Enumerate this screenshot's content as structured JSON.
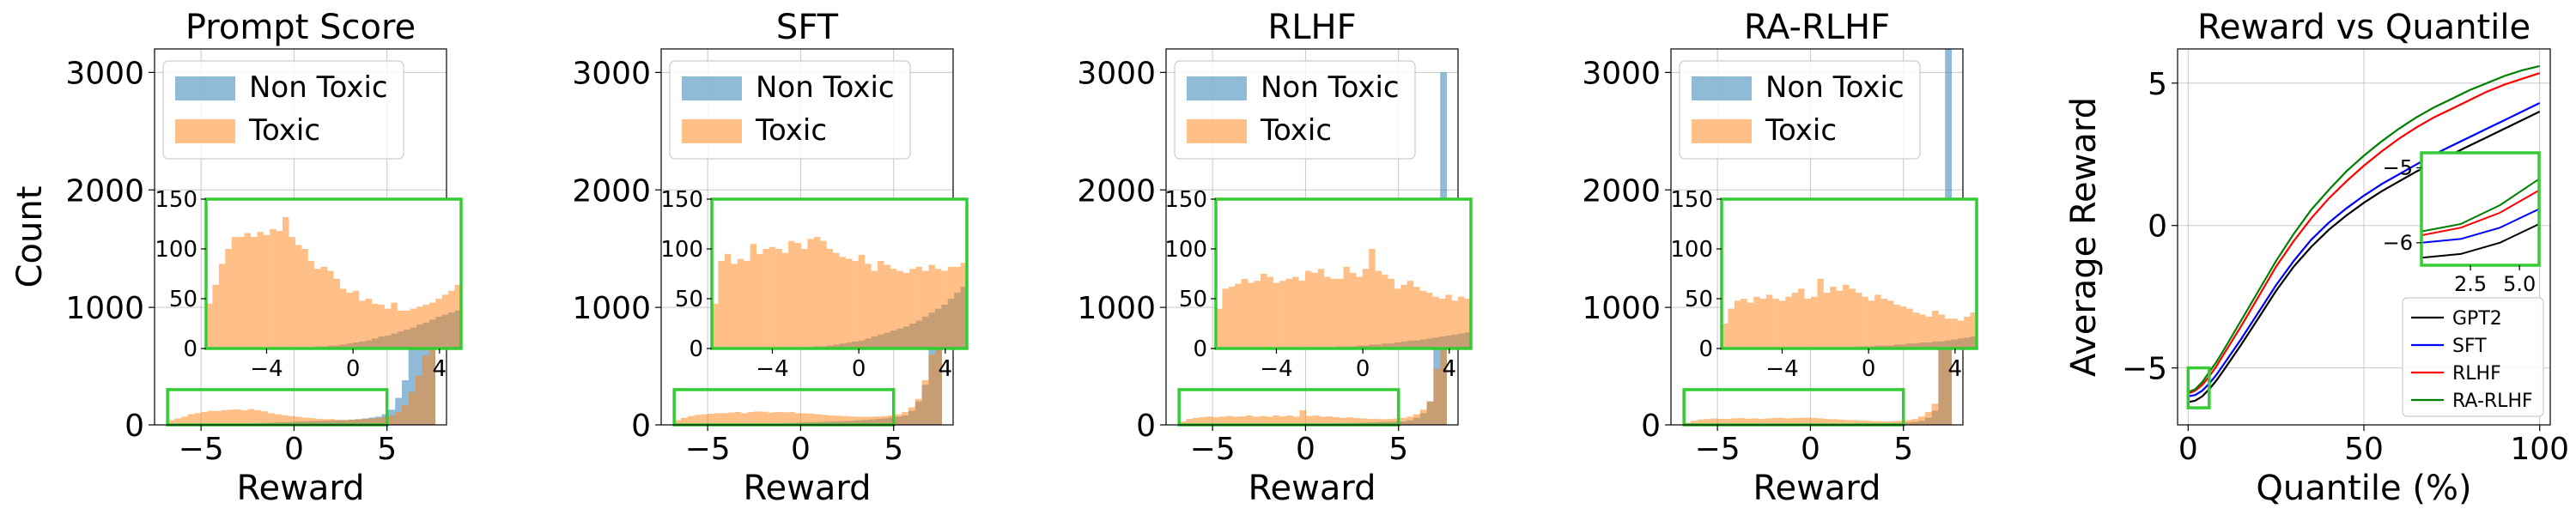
{
  "colors": {
    "non_toxic": "#1f77b4",
    "toxic": "#ff7f0e",
    "inset_border": "#33cc33",
    "grid": "#b0b0b0",
    "gpt2": "#000000",
    "sft": "#0000ff",
    "rlhf": "#ff0000",
    "ra_rlhf": "#008000"
  },
  "chart_data": [
    {
      "type": "histogram",
      "title": "Prompt Score",
      "xlabel": "Reward",
      "ylabel": "Count",
      "xlim": [
        -7.5,
        8.2
      ],
      "ylim": [
        0,
        3200
      ],
      "xticks": [
        -5,
        0,
        5
      ],
      "xtick_labels": [
        "−5",
        "0",
        "5"
      ],
      "yticks": [
        0,
        1000,
        2000,
        3000
      ],
      "ytick_labels": [
        "0",
        "1000",
        "2000",
        "3000"
      ],
      "grid": true,
      "legend": {
        "placement": "upper-left",
        "entries": [
          "Non Toxic",
          "Toxic"
        ]
      },
      "bin_range": [
        -6.8,
        7.6
      ],
      "nontoxic_counts": [
        0,
        1,
        1,
        1,
        2,
        2,
        3,
        3,
        5,
        6,
        8,
        10,
        12,
        14,
        16,
        18,
        20,
        22,
        25,
        28,
        30,
        32,
        34,
        35,
        36,
        38,
        40,
        44,
        48,
        55,
        62,
        70,
        90,
        130,
        230,
        380,
        650,
        1000,
        1200,
        1420
      ],
      "toxic_counts": [
        40,
        55,
        70,
        90,
        100,
        110,
        120,
        118,
        125,
        130,
        132,
        125,
        135,
        125,
        115,
        100,
        90,
        82,
        75,
        70,
        62,
        58,
        52,
        48,
        50,
        44,
        42,
        45,
        48,
        50,
        55,
        58,
        70,
        80,
        110,
        170,
        280,
        420,
        590,
        830
      ],
      "zoom_box": {
        "xlim": [
          -6.8,
          5
        ],
        "ylim": [
          0,
          300
        ]
      },
      "inset": {
        "xlim": [
          -6.8,
          5
        ],
        "ylim": [
          0,
          150
        ],
        "xticks": [
          -4,
          0,
          4
        ],
        "xtick_labels": [
          "−4",
          "0",
          "4"
        ],
        "yticks": [
          0,
          50,
          100,
          150
        ],
        "ytick_labels": [
          "0",
          "50",
          "100",
          "150"
        ],
        "nontoxic_counts": [
          0,
          0,
          0,
          0,
          0,
          0,
          0,
          0,
          0,
          0,
          0,
          0,
          0,
          1,
          1,
          1,
          1,
          2,
          2,
          3,
          3,
          4,
          5,
          6,
          7,
          8,
          10,
          12,
          13,
          15,
          17,
          19,
          21,
          24,
          26,
          29,
          32,
          34,
          36,
          38
        ],
        "toxic_counts": [
          45,
          64,
          85,
          100,
          112,
          112,
          116,
          112,
          117,
          114,
          120,
          118,
          132,
          112,
          104,
          100,
          88,
          80,
          82,
          78,
          70,
          60,
          56,
          58,
          48,
          50,
          45,
          44,
          40,
          46,
          38,
          38,
          40,
          42,
          44,
          46,
          50,
          54,
          58,
          64
        ]
      }
    },
    {
      "type": "histogram",
      "title": "SFT",
      "xlabel": "Reward",
      "ylabel": "",
      "xlim": [
        -7.5,
        8.2
      ],
      "ylim": [
        0,
        3200
      ],
      "xticks": [
        -5,
        0,
        5
      ],
      "xtick_labels": [
        "−5",
        "0",
        "5"
      ],
      "yticks": [
        0,
        1000,
        2000,
        3000
      ],
      "ytick_labels": [
        "0",
        "1000",
        "2000",
        "3000"
      ],
      "grid": true,
      "legend": {
        "placement": "upper-left",
        "entries": [
          "Non Toxic",
          "Toxic"
        ]
      },
      "bin_range": [
        -6.8,
        7.6
      ],
      "nontoxic_counts": [
        0,
        0,
        1,
        1,
        1,
        2,
        2,
        3,
        3,
        4,
        5,
        6,
        7,
        8,
        10,
        12,
        14,
        16,
        18,
        20,
        22,
        24,
        26,
        28,
        30,
        32,
        34,
        38,
        42,
        46,
        50,
        56,
        62,
        70,
        80,
        120,
        200,
        340,
        700,
        1900
      ],
      "toxic_counts": [
        40,
        60,
        75,
        85,
        90,
        95,
        100,
        100,
        105,
        110,
        100,
        110,
        115,
        112,
        105,
        110,
        108,
        110,
        100,
        98,
        95,
        90,
        85,
        80,
        78,
        75,
        72,
        70,
        68,
        70,
        72,
        75,
        80,
        90,
        110,
        150,
        220,
        380,
        600,
        800
      ],
      "zoom_box": {
        "xlim": [
          -6.8,
          5
        ],
        "ylim": [
          0,
          300
        ]
      },
      "inset": {
        "xlim": [
          -6.8,
          5
        ],
        "ylim": [
          0,
          150
        ],
        "xticks": [
          -4,
          0,
          4
        ],
        "xtick_labels": [
          "−4",
          "0",
          "4"
        ],
        "yticks": [
          0,
          50,
          100,
          150
        ],
        "ytick_labels": [
          "0",
          "50",
          "100",
          "150"
        ],
        "nontoxic_counts": [
          0,
          0,
          0,
          0,
          0,
          0,
          0,
          0,
          0,
          0,
          0,
          0,
          0,
          1,
          1,
          1,
          2,
          2,
          3,
          4,
          5,
          6,
          7,
          8,
          10,
          12,
          14,
          16,
          18,
          20,
          22,
          25,
          28,
          32,
          36,
          40,
          44,
          50,
          56,
          62
        ],
        "toxic_counts": [
          45,
          88,
          95,
          85,
          90,
          88,
          105,
          95,
          100,
          102,
          100,
          96,
          108,
          106,
          100,
          110,
          112,
          108,
          100,
          96,
          92,
          90,
          88,
          94,
          85,
          78,
          88,
          84,
          80,
          78,
          76,
          80,
          82,
          78,
          84,
          80,
          78,
          82,
          82,
          86
        ]
      }
    },
    {
      "type": "histogram",
      "title": "RLHF",
      "xlabel": "Reward",
      "ylabel": "",
      "xlim": [
        -7.5,
        8.2
      ],
      "ylim": [
        0,
        3200
      ],
      "xticks": [
        -5,
        0,
        5
      ],
      "xtick_labels": [
        "−5",
        "0",
        "5"
      ],
      "yticks": [
        0,
        1000,
        2000,
        3000
      ],
      "ytick_labels": [
        "0",
        "1000",
        "2000",
        "3000"
      ],
      "grid": true,
      "legend": {
        "placement": "upper-left",
        "entries": [
          "Non Toxic",
          "Toxic"
        ]
      },
      "bin_range": [
        -6.8,
        7.6
      ],
      "nontoxic_counts": [
        0,
        0,
        0,
        1,
        1,
        1,
        1,
        2,
        2,
        2,
        3,
        3,
        4,
        4,
        5,
        6,
        6,
        7,
        8,
        9,
        10,
        11,
        12,
        13,
        14,
        15,
        16,
        18,
        20,
        22,
        24,
        26,
        28,
        30,
        40,
        60,
        100,
        200,
        700,
        3000
      ],
      "toxic_counts": [
        30,
        50,
        60,
        65,
        70,
        65,
        70,
        75,
        70,
        72,
        80,
        70,
        75,
        70,
        80,
        72,
        80,
        70,
        125,
        75,
        80,
        70,
        72,
        65,
        60,
        65,
        58,
        55,
        50,
        52,
        48,
        50,
        55,
        60,
        70,
        90,
        130,
        200,
        480,
        1750
      ],
      "zoom_box": {
        "xlim": [
          -6.8,
          5
        ],
        "ylim": [
          0,
          300
        ]
      },
      "inset": {
        "xlim": [
          -6.8,
          5
        ],
        "ylim": [
          0,
          150
        ],
        "xticks": [
          -4,
          0,
          4
        ],
        "xtick_labels": [
          "−4",
          "0",
          "4"
        ],
        "yticks": [
          0,
          50,
          100,
          150
        ],
        "ytick_labels": [
          "0",
          "50",
          "100",
          "150"
        ],
        "nontoxic_counts": [
          0,
          0,
          0,
          0,
          0,
          0,
          0,
          0,
          0,
          0,
          0,
          0,
          0,
          0,
          0,
          1,
          1,
          1,
          1,
          2,
          2,
          2,
          3,
          3,
          4,
          4,
          5,
          5,
          6,
          7,
          8,
          8,
          9,
          10,
          11,
          12,
          13,
          14,
          15,
          16
        ],
        "toxic_counts": [
          40,
          60,
          62,
          65,
          70,
          66,
          68,
          75,
          72,
          66,
          68,
          70,
          72,
          68,
          78,
          76,
          80,
          72,
          70,
          70,
          82,
          76,
          72,
          80,
          100,
          78,
          74,
          70,
          60,
          64,
          68,
          62,
          58,
          56,
          52,
          50,
          54,
          48,
          52,
          50
        ]
      }
    },
    {
      "type": "histogram",
      "title": "RA-RLHF",
      "xlabel": "Reward",
      "ylabel": "",
      "xlim": [
        -7.5,
        8.2
      ],
      "ylim": [
        0,
        3200
      ],
      "xticks": [
        -5,
        0,
        5
      ],
      "xtick_labels": [
        "−5",
        "0",
        "5"
      ],
      "yticks": [
        0,
        1000,
        2000,
        3000
      ],
      "ytick_labels": [
        "0",
        "1000",
        "2000",
        "3000"
      ],
      "grid": true,
      "legend": {
        "placement": "upper-left",
        "entries": [
          "Non Toxic",
          "Toxic"
        ]
      },
      "bin_range": [
        -6.8,
        7.6
      ],
      "nontoxic_counts": [
        0,
        0,
        0,
        0,
        1,
        1,
        1,
        1,
        2,
        2,
        2,
        3,
        3,
        3,
        4,
        4,
        5,
        5,
        6,
        6,
        7,
        7,
        8,
        8,
        9,
        10,
        11,
        12,
        13,
        14,
        15,
        16,
        18,
        20,
        25,
        35,
        60,
        120,
        1700,
        3300
      ],
      "toxic_counts": [
        20,
        35,
        45,
        50,
        55,
        52,
        50,
        55,
        58,
        52,
        55,
        50,
        55,
        58,
        60,
        55,
        58,
        60,
        62,
        58,
        55,
        50,
        48,
        45,
        42,
        40,
        38,
        35,
        32,
        30,
        30,
        32,
        35,
        40,
        50,
        70,
        110,
        180,
        700,
        1650
      ],
      "zoom_box": {
        "xlim": [
          -6.8,
          5
        ],
        "ylim": [
          0,
          300
        ]
      },
      "inset": {
        "xlim": [
          -6.8,
          5
        ],
        "ylim": [
          0,
          150
        ],
        "xticks": [
          -4,
          0,
          4
        ],
        "xtick_labels": [
          "−4",
          "0",
          "4"
        ],
        "yticks": [
          0,
          50,
          100,
          150
        ],
        "ytick_labels": [
          "0",
          "50",
          "100",
          "150"
        ],
        "nontoxic_counts": [
          0,
          0,
          0,
          0,
          0,
          0,
          0,
          0,
          0,
          0,
          0,
          0,
          0,
          0,
          0,
          0,
          1,
          1,
          1,
          1,
          1,
          2,
          2,
          2,
          3,
          3,
          3,
          4,
          4,
          5,
          5,
          6,
          6,
          7,
          7,
          8,
          9,
          10,
          11,
          12
        ],
        "toxic_counts": [
          25,
          40,
          48,
          50,
          46,
          52,
          50,
          54,
          50,
          48,
          52,
          56,
          60,
          50,
          52,
          70,
          56,
          62,
          58,
          64,
          60,
          56,
          52,
          48,
          54,
          50,
          48,
          44,
          42,
          40,
          36,
          34,
          32,
          38,
          34,
          30,
          30,
          28,
          32,
          36
        ]
      }
    },
    {
      "type": "line",
      "title": "Reward vs Quantile",
      "xlabel": "Quantile (%)",
      "ylabel": "Average Reward",
      "xlim": [
        -3,
        103
      ],
      "ylim": [
        -7,
        6.2
      ],
      "xticks": [
        0,
        50,
        100
      ],
      "xtick_labels": [
        "0",
        "50",
        "100"
      ],
      "yticks": [
        -5,
        0,
        5
      ],
      "ytick_labels": [
        "−5",
        "0",
        "5"
      ],
      "grid": true,
      "legend": {
        "placement": "lower-right",
        "entries": [
          "GPT2",
          "SFT",
          "RLHF",
          "RA-RLHF"
        ]
      },
      "x": [
        0,
        2,
        4,
        6,
        8,
        10,
        15,
        20,
        25,
        30,
        35,
        40,
        45,
        50,
        55,
        60,
        65,
        70,
        75,
        80,
        85,
        90,
        95,
        100
      ],
      "series": [
        {
          "name": "GPT2",
          "y": [
            -6.2,
            -6.15,
            -6.0,
            -5.75,
            -5.45,
            -5.1,
            -4.2,
            -3.25,
            -2.3,
            -1.45,
            -0.75,
            -0.15,
            0.35,
            0.8,
            1.2,
            1.55,
            1.9,
            2.2,
            2.5,
            2.8,
            3.1,
            3.4,
            3.7,
            4.0
          ]
        },
        {
          "name": "SFT",
          "y": [
            -6.0,
            -5.95,
            -5.8,
            -5.55,
            -5.25,
            -4.9,
            -4.0,
            -3.05,
            -2.1,
            -1.25,
            -0.5,
            0.1,
            0.6,
            1.05,
            1.45,
            1.8,
            2.15,
            2.5,
            2.8,
            3.1,
            3.4,
            3.7,
            4.0,
            4.3
          ]
        },
        {
          "name": "RLHF",
          "y": [
            -5.9,
            -5.8,
            -5.6,
            -5.3,
            -4.95,
            -4.55,
            -3.55,
            -2.5,
            -1.45,
            -0.55,
            0.25,
            0.95,
            1.55,
            2.1,
            2.6,
            3.05,
            3.45,
            3.8,
            4.1,
            4.4,
            4.7,
            4.95,
            5.15,
            5.35
          ]
        },
        {
          "name": "RA-RLHF",
          "y": [
            -5.85,
            -5.75,
            -5.5,
            -5.15,
            -4.8,
            -4.4,
            -3.35,
            -2.3,
            -1.25,
            -0.3,
            0.55,
            1.25,
            1.9,
            2.45,
            2.95,
            3.4,
            3.8,
            4.15,
            4.45,
            4.75,
            5.0,
            5.25,
            5.45,
            5.6
          ]
        }
      ],
      "zoom_box": {
        "xlim": [
          0,
          6
        ],
        "ylim": [
          -6.4,
          -5.0
        ]
      },
      "inset": {
        "xlim": [
          0,
          6
        ],
        "ylim": [
          -6.3,
          -4.8
        ],
        "xticks": [
          2.5,
          5.0
        ],
        "xtick_labels": [
          "2.5",
          "5.0"
        ],
        "yticks": [
          -6,
          -5
        ],
        "ytick_labels": [
          "−6",
          "−5"
        ]
      }
    }
  ]
}
